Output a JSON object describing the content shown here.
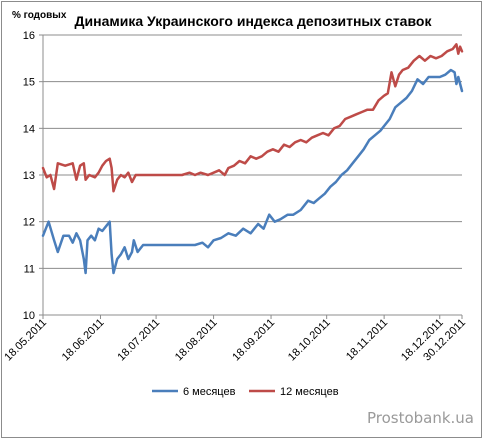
{
  "chart_data": {
    "type": "line",
    "title": "Динамика Украинского индекса депозитных ставок",
    "ylabel": "% годовых",
    "xlabel": "",
    "ylim": [
      10,
      16
    ],
    "yticks": [
      "10",
      "11",
      "12",
      "13",
      "14",
      "15",
      "16"
    ],
    "xlim": [
      "2011-05-18",
      "2011-12-30"
    ],
    "xtick_labels": [
      "18.05.2011",
      "18.06.2011",
      "18.07.2011",
      "18.08.2011",
      "18.09.2011",
      "18.10.2011",
      "18.11.2011",
      "18.12.2011",
      "30.12.2011"
    ],
    "grid": "horizontal",
    "legend_position": "bottom",
    "series": [
      {
        "name": "6 месяцев",
        "color": "#4a7ebb",
        "points": [
          [
            "2011-05-18",
            11.7
          ],
          [
            "2011-05-21",
            12.0
          ],
          [
            "2011-05-24",
            11.6
          ],
          [
            "2011-05-26",
            11.35
          ],
          [
            "2011-05-29",
            11.7
          ],
          [
            "2011-06-01",
            11.7
          ],
          [
            "2011-06-03",
            11.55
          ],
          [
            "2011-06-05",
            11.75
          ],
          [
            "2011-06-07",
            11.6
          ],
          [
            "2011-06-09",
            11.2
          ],
          [
            "2011-06-10",
            10.9
          ],
          [
            "2011-06-11",
            11.6
          ],
          [
            "2011-06-13",
            11.7
          ],
          [
            "2011-06-15",
            11.6
          ],
          [
            "2011-06-17",
            11.85
          ],
          [
            "2011-06-19",
            11.8
          ],
          [
            "2011-06-21",
            11.9
          ],
          [
            "2011-06-23",
            12.0
          ],
          [
            "2011-06-24",
            11.3
          ],
          [
            "2011-06-25",
            10.9
          ],
          [
            "2011-06-27",
            11.2
          ],
          [
            "2011-06-29",
            11.3
          ],
          [
            "2011-07-01",
            11.45
          ],
          [
            "2011-07-03",
            11.2
          ],
          [
            "2011-07-05",
            11.35
          ],
          [
            "2011-07-06",
            11.6
          ],
          [
            "2011-07-08",
            11.35
          ],
          [
            "2011-07-11",
            11.5
          ],
          [
            "2011-07-15",
            11.5
          ],
          [
            "2011-07-20",
            11.5
          ],
          [
            "2011-07-25",
            11.5
          ],
          [
            "2011-08-01",
            11.5
          ],
          [
            "2011-08-08",
            11.5
          ],
          [
            "2011-08-12",
            11.55
          ],
          [
            "2011-08-15",
            11.45
          ],
          [
            "2011-08-18",
            11.6
          ],
          [
            "2011-08-22",
            11.65
          ],
          [
            "2011-08-26",
            11.75
          ],
          [
            "2011-08-30",
            11.7
          ],
          [
            "2011-09-03",
            11.85
          ],
          [
            "2011-09-07",
            11.75
          ],
          [
            "2011-09-11",
            11.95
          ],
          [
            "2011-09-14",
            11.85
          ],
          [
            "2011-09-17",
            12.15
          ],
          [
            "2011-09-20",
            12.0
          ],
          [
            "2011-09-23",
            12.05
          ],
          [
            "2011-09-27",
            12.15
          ],
          [
            "2011-09-30",
            12.15
          ],
          [
            "2011-10-04",
            12.25
          ],
          [
            "2011-10-08",
            12.45
          ],
          [
            "2011-10-11",
            12.4
          ],
          [
            "2011-10-14",
            12.5
          ],
          [
            "2011-10-17",
            12.6
          ],
          [
            "2011-10-20",
            12.75
          ],
          [
            "2011-10-23",
            12.85
          ],
          [
            "2011-10-26",
            13.0
          ],
          [
            "2011-10-29",
            13.1
          ],
          [
            "2011-11-01",
            13.25
          ],
          [
            "2011-11-04",
            13.4
          ],
          [
            "2011-11-07",
            13.55
          ],
          [
            "2011-11-10",
            13.75
          ],
          [
            "2011-11-13",
            13.85
          ],
          [
            "2011-11-16",
            13.95
          ],
          [
            "2011-11-18",
            14.05
          ],
          [
            "2011-11-21",
            14.2
          ],
          [
            "2011-11-24",
            14.45
          ],
          [
            "2011-11-27",
            14.55
          ],
          [
            "2011-11-30",
            14.65
          ],
          [
            "2011-12-03",
            14.8
          ],
          [
            "2011-12-06",
            15.05
          ],
          [
            "2011-12-09",
            14.95
          ],
          [
            "2011-12-12",
            15.1
          ],
          [
            "2011-12-15",
            15.1
          ],
          [
            "2011-12-18",
            15.1
          ],
          [
            "2011-12-21",
            15.15
          ],
          [
            "2011-12-24",
            15.25
          ],
          [
            "2011-12-26",
            15.2
          ],
          [
            "2011-12-27",
            14.95
          ],
          [
            "2011-12-28",
            15.1
          ],
          [
            "2011-12-30",
            14.8
          ]
        ]
      },
      {
        "name": "12 месяцев",
        "color": "#be4b48",
        "points": [
          [
            "2011-05-18",
            13.15
          ],
          [
            "2011-05-20",
            12.95
          ],
          [
            "2011-05-22",
            13.0
          ],
          [
            "2011-05-24",
            12.7
          ],
          [
            "2011-05-26",
            13.25
          ],
          [
            "2011-05-30",
            13.2
          ],
          [
            "2011-06-03",
            13.25
          ],
          [
            "2011-06-05",
            12.9
          ],
          [
            "2011-06-07",
            13.2
          ],
          [
            "2011-06-09",
            13.25
          ],
          [
            "2011-06-10",
            12.9
          ],
          [
            "2011-06-12",
            13.0
          ],
          [
            "2011-06-15",
            12.95
          ],
          [
            "2011-06-17",
            13.05
          ],
          [
            "2011-06-19",
            13.2
          ],
          [
            "2011-06-21",
            13.3
          ],
          [
            "2011-06-23",
            13.35
          ],
          [
            "2011-06-24",
            13.15
          ],
          [
            "2011-06-25",
            12.65
          ],
          [
            "2011-06-27",
            12.9
          ],
          [
            "2011-06-29",
            13.0
          ],
          [
            "2011-07-01",
            12.95
          ],
          [
            "2011-07-03",
            13.05
          ],
          [
            "2011-07-05",
            12.85
          ],
          [
            "2011-07-07",
            13.0
          ],
          [
            "2011-07-10",
            13.0
          ],
          [
            "2011-07-15",
            13.0
          ],
          [
            "2011-07-20",
            13.0
          ],
          [
            "2011-07-25",
            13.0
          ],
          [
            "2011-08-01",
            13.0
          ],
          [
            "2011-08-05",
            13.05
          ],
          [
            "2011-08-08",
            13.0
          ],
          [
            "2011-08-11",
            13.05
          ],
          [
            "2011-08-15",
            13.0
          ],
          [
            "2011-08-18",
            13.05
          ],
          [
            "2011-08-21",
            13.1
          ],
          [
            "2011-08-24",
            13.0
          ],
          [
            "2011-08-26",
            13.15
          ],
          [
            "2011-08-29",
            13.2
          ],
          [
            "2011-09-01",
            13.3
          ],
          [
            "2011-09-04",
            13.25
          ],
          [
            "2011-09-07",
            13.4
          ],
          [
            "2011-09-10",
            13.35
          ],
          [
            "2011-09-13",
            13.4
          ],
          [
            "2011-09-16",
            13.5
          ],
          [
            "2011-09-19",
            13.55
          ],
          [
            "2011-09-22",
            13.5
          ],
          [
            "2011-09-25",
            13.65
          ],
          [
            "2011-09-28",
            13.6
          ],
          [
            "2011-10-01",
            13.7
          ],
          [
            "2011-10-04",
            13.75
          ],
          [
            "2011-10-07",
            13.7
          ],
          [
            "2011-10-10",
            13.8
          ],
          [
            "2011-10-13",
            13.85
          ],
          [
            "2011-10-16",
            13.9
          ],
          [
            "2011-10-19",
            13.85
          ],
          [
            "2011-10-22",
            14.0
          ],
          [
            "2011-10-25",
            14.05
          ],
          [
            "2011-10-28",
            14.2
          ],
          [
            "2011-10-31",
            14.25
          ],
          [
            "2011-11-03",
            14.3
          ],
          [
            "2011-11-06",
            14.35
          ],
          [
            "2011-11-09",
            14.4
          ],
          [
            "2011-11-12",
            14.4
          ],
          [
            "2011-11-15",
            14.6
          ],
          [
            "2011-11-18",
            14.7
          ],
          [
            "2011-11-20",
            14.75
          ],
          [
            "2011-11-22",
            15.2
          ],
          [
            "2011-11-24",
            14.9
          ],
          [
            "2011-11-26",
            15.15
          ],
          [
            "2011-11-28",
            15.25
          ],
          [
            "2011-12-01",
            15.3
          ],
          [
            "2011-12-04",
            15.45
          ],
          [
            "2011-12-07",
            15.55
          ],
          [
            "2011-12-10",
            15.45
          ],
          [
            "2011-12-13",
            15.55
          ],
          [
            "2011-12-16",
            15.5
          ],
          [
            "2011-12-19",
            15.55
          ],
          [
            "2011-12-22",
            15.65
          ],
          [
            "2011-12-25",
            15.7
          ],
          [
            "2011-12-27",
            15.8
          ],
          [
            "2011-12-28",
            15.6
          ],
          [
            "2011-12-29",
            15.75
          ],
          [
            "2011-12-30",
            15.65
          ]
        ]
      }
    ]
  },
  "watermark": "Prostobank.ua"
}
